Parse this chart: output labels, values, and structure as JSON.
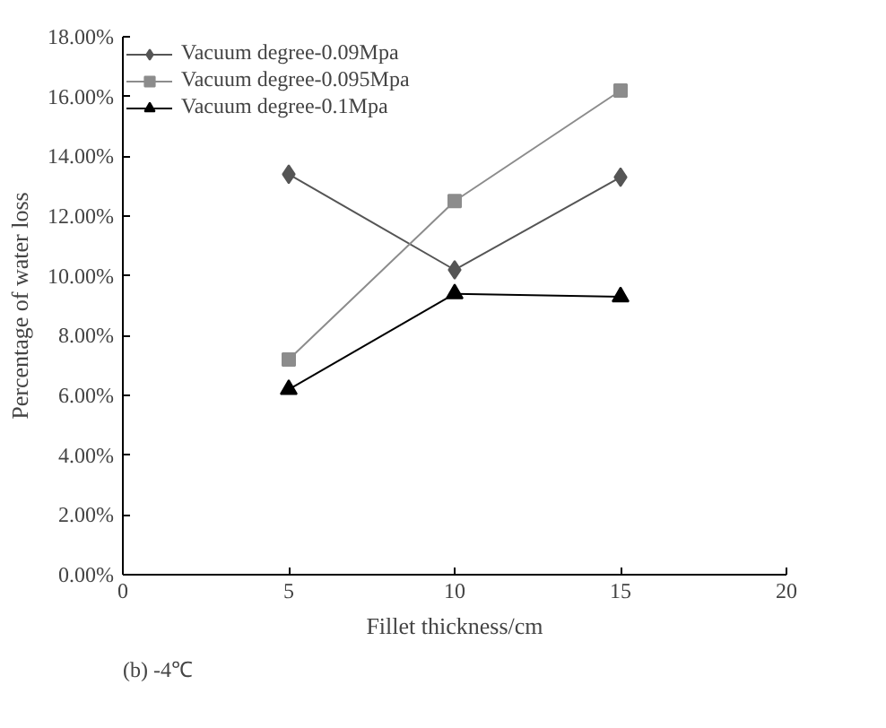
{
  "chart_data": {
    "type": "line",
    "xlabel": "Fillet thickness/cm",
    "ylabel": "Percentage of water loss",
    "x": [
      5,
      10,
      15
    ],
    "series": [
      {
        "name": "Vacuum degree-0.09Mpa",
        "color": "#555555",
        "marker": "diamond",
        "values": [
          13.4,
          10.2,
          13.3
        ]
      },
      {
        "name": "Vacuum degree-0.095Mpa",
        "color": "#8c8c8c",
        "marker": "square",
        "values": [
          7.2,
          12.5,
          16.2
        ]
      },
      {
        "name": "Vacuum degree-0.1Mpa",
        "color": "#000000",
        "marker": "triangle",
        "values": [
          6.2,
          9.4,
          9.3
        ]
      }
    ],
    "xlim": [
      0,
      20
    ],
    "xticks": [
      0,
      5,
      10,
      15,
      20
    ],
    "ylim": [
      0,
      18
    ],
    "yticks": [
      {
        "value": 0,
        "label": "0.00%"
      },
      {
        "value": 2,
        "label": "2.00%"
      },
      {
        "value": 4,
        "label": "4.00%"
      },
      {
        "value": 6,
        "label": "6.00%"
      },
      {
        "value": 8,
        "label": "8.00%"
      },
      {
        "value": 10,
        "label": "10.00%"
      },
      {
        "value": 12,
        "label": "12.00%"
      },
      {
        "value": 14,
        "label": "14.00%"
      },
      {
        "value": 16,
        "label": "16.00%"
      },
      {
        "value": 18,
        "label": "18.00%"
      }
    ],
    "grid": false,
    "legend": "top left",
    "line_style": "solid",
    "annotations": [
      "(b) -4℃"
    ]
  }
}
